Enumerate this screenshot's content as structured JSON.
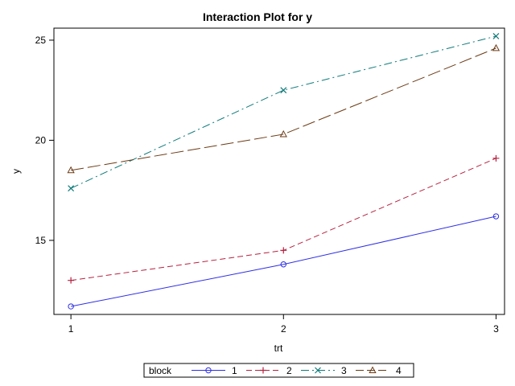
{
  "chart_data": {
    "type": "line",
    "title": "Interaction Plot for y",
    "xlabel": "trt",
    "ylabel": "y",
    "x": [
      1,
      2,
      3
    ],
    "x_tick_labels": [
      "1",
      "2",
      "3"
    ],
    "xlim": [
      0.92,
      3.04
    ],
    "y_ticks": [
      15,
      20,
      25
    ],
    "y_tick_labels": [
      "15",
      "20",
      "25"
    ],
    "ylim": [
      11.3,
      25.6
    ],
    "grid": false,
    "legend": {
      "title": "block",
      "placement": "bottom-center"
    },
    "series": [
      {
        "name": "1",
        "values": [
          11.7,
          13.8,
          16.2
        ],
        "color": "#2e2ee6",
        "marker": "circle",
        "dash": "solid"
      },
      {
        "name": "2",
        "values": [
          13.0,
          14.5,
          19.1
        ],
        "color": "#b5213f",
        "marker": "plus",
        "dash": "dashed"
      },
      {
        "name": "3",
        "values": [
          17.6,
          22.5,
          25.2
        ],
        "color": "#0f7a7a",
        "marker": "x",
        "dash": "dashdot"
      },
      {
        "name": "4",
        "values": [
          18.5,
          20.3,
          24.6
        ],
        "color": "#6b3a14",
        "marker": "triangle",
        "dash": "longdash"
      }
    ]
  }
}
